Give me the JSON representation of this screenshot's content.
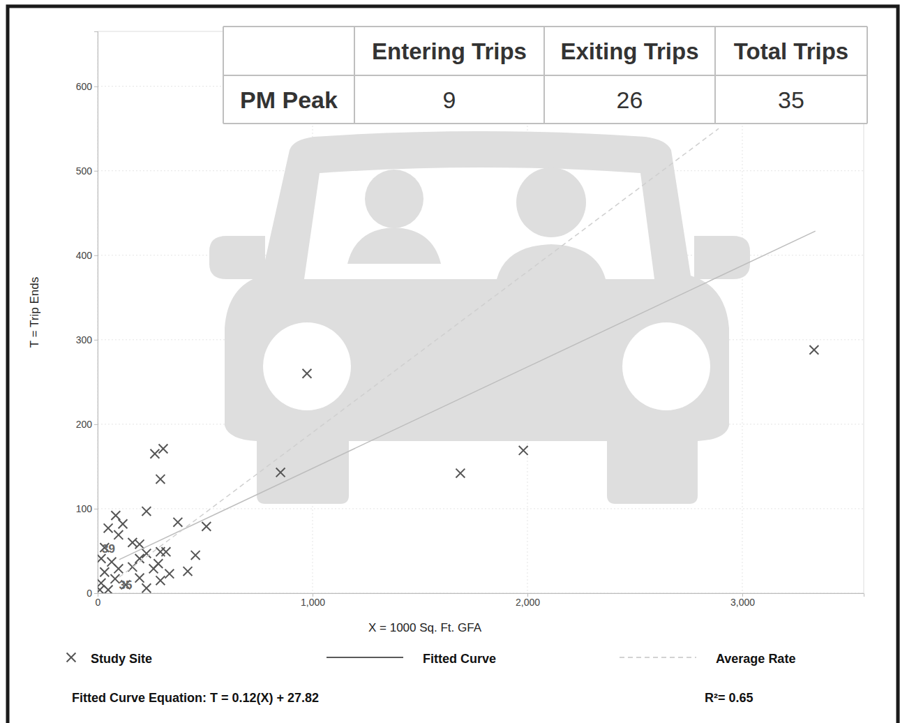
{
  "chart_data": {
    "type": "scatter",
    "x_label": "X = 1000 Sq. Ft. GFA",
    "y_label": "T = Trip Ends",
    "xlim": [
      0,
      3565
    ],
    "ylim": [
      0,
      665
    ],
    "xticks": [
      0,
      {
        "value": 1000,
        "label": "1,000"
      },
      {
        "value": 2000,
        "label": "2,000"
      },
      {
        "value": 3000,
        "label": "3,000"
      }
    ],
    "yticks": [
      0,
      100,
      200,
      300,
      400,
      500,
      600
    ],
    "grid": true,
    "legend": "bottom",
    "series": [
      {
        "name": "Study Site",
        "type": "scatter",
        "marker": "x",
        "color": "#555555",
        "x": [
          974,
          3334,
          1688,
          1981,
          851,
          506,
          455,
          419,
          373,
          305,
          266,
          292,
          227,
          84,
          49,
          117,
          97,
          162,
          195,
          227,
          292,
          318,
          282,
          334,
          292,
          195,
          162,
          227,
          130,
          32,
          16,
          65,
          32,
          16,
          81,
          10,
          49,
          97,
          195,
          260
        ],
        "values": [
          260,
          288,
          142,
          169,
          143,
          79,
          45,
          26,
          84,
          171,
          165,
          135,
          97,
          92,
          77,
          82,
          69,
          60,
          58,
          47,
          49,
          49,
          35,
          23,
          15,
          18,
          31,
          6,
          10,
          54,
          41,
          37,
          25,
          12,
          17,
          4,
          4,
          29,
          41,
          29
        ]
      },
      {
        "name": "Fitted Curve",
        "type": "line",
        "line_style": "solid",
        "color": "#bdbdbd",
        "x": [
          100,
          3340
        ],
        "values": [
          39.8,
          428.6
        ]
      },
      {
        "name": "Average Rate",
        "type": "line",
        "line_style": "dashed",
        "color": "#cfcfcf",
        "x": [
          100,
          2890
        ],
        "values": [
          19,
          550
        ]
      }
    ],
    "annotations": [
      {
        "text": "39",
        "x": 50,
        "y": 48
      },
      {
        "text": "35",
        "x": 130,
        "y": 5
      }
    ],
    "equation": "Fitted Curve Equation: T = 0.12(X) + 27.82",
    "r_squared": "R²= 0.65"
  },
  "table": {
    "columns": [
      "Entering Trips",
      "Exiting Trips",
      "Total Trips"
    ],
    "row_label": "PM Peak",
    "values": [
      9,
      26,
      35
    ]
  }
}
